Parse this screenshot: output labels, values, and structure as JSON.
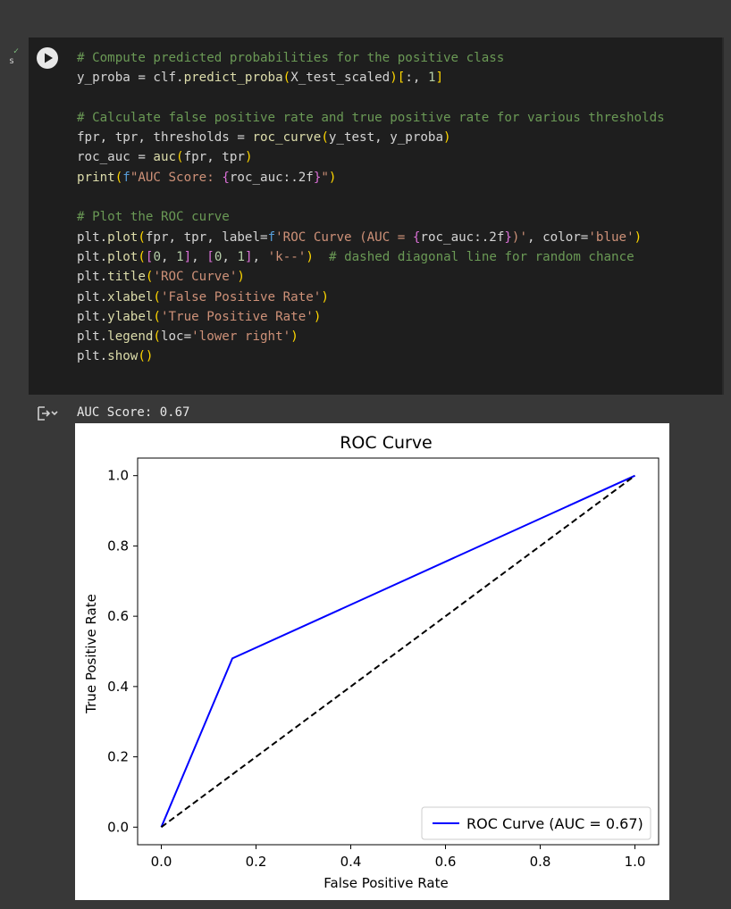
{
  "cell": {
    "code_lines": [
      {
        "comment": "# Compute predicted probabilities for the positive class"
      },
      {
        "text": "y_proba = clf.predict_proba(X_test_scaled)[:, 1]"
      },
      {
        "text": ""
      },
      {
        "comment": "# Calculate false positive rate and true positive rate for various thresholds"
      },
      {
        "text": "fpr, tpr, thresholds = roc_curve(y_test, y_proba)"
      },
      {
        "text": "roc_auc = auc(fpr, tpr)"
      },
      {
        "text": "print(f\"AUC Score: {roc_auc:.2f}\")"
      },
      {
        "text": ""
      },
      {
        "comment": "# Plot the ROC curve"
      },
      {
        "text": "plt.plot(fpr, tpr, label=f'ROC Curve (AUC = {roc_auc:.2f})', color='blue')"
      },
      {
        "text": "plt.plot([0, 1], [0, 1], 'k--')  # dashed diagonal line for random chance"
      },
      {
        "text": "plt.title('ROC Curve')"
      },
      {
        "text": "plt.xlabel('False Positive Rate')"
      },
      {
        "text": "plt.ylabel('True Positive Rate')"
      },
      {
        "text": "plt.legend(loc='lower right')"
      },
      {
        "text": "plt.show()"
      }
    ],
    "exec_marker": "s"
  },
  "output": {
    "text": "AUC Score: 0.67"
  },
  "chart_data": {
    "type": "line",
    "title": "ROC Curve",
    "xlabel": "False Positive Rate",
    "ylabel": "True Positive Rate",
    "xlim": [
      -0.05,
      1.05
    ],
    "ylim": [
      -0.05,
      1.05
    ],
    "xticks": [
      0.0,
      0.2,
      0.4,
      0.6,
      0.8,
      1.0
    ],
    "yticks": [
      0.0,
      0.2,
      0.4,
      0.6,
      0.8,
      1.0
    ],
    "xtick_labels": [
      "0.0",
      "0.2",
      "0.4",
      "0.6",
      "0.8",
      "1.0"
    ],
    "ytick_labels": [
      "0.0",
      "0.2",
      "0.4",
      "0.6",
      "0.8",
      "1.0"
    ],
    "grid": false,
    "legend_position": "lower right",
    "series": [
      {
        "name": "ROC Curve (AUC = 0.67)",
        "x": [
          0.0,
          0.15,
          1.0
        ],
        "y": [
          0.0,
          0.48,
          1.0
        ],
        "color": "#0000ff",
        "style": "solid"
      },
      {
        "x": [
          0.0,
          1.0
        ],
        "y": [
          0.0,
          1.0
        ],
        "color": "#000000",
        "style": "dashed"
      }
    ]
  }
}
